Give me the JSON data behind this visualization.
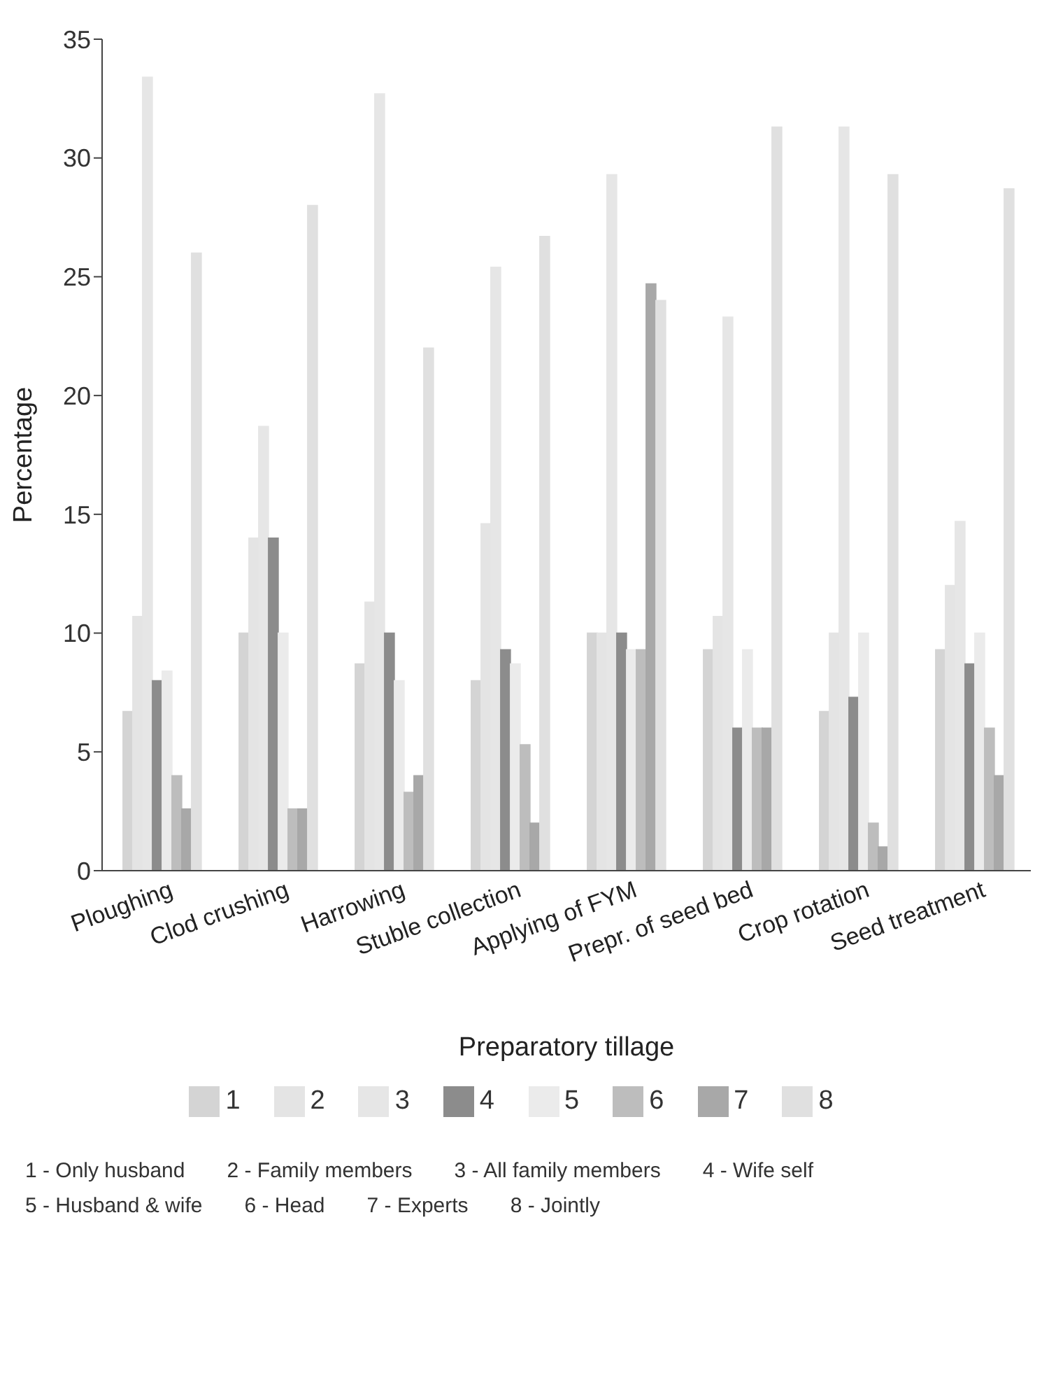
{
  "chart_data": {
    "type": "bar",
    "xlabel": "Preparatory tillage",
    "ylabel": "Percentage",
    "categories": [
      "Ploughing",
      "Clod crushing",
      "Harrowing",
      "Stuble collection",
      "Applying of FYM",
      "Prepr. of seed bed",
      "Crop rotation",
      "Seed treatment"
    ],
    "series": [
      {
        "name": "1",
        "color": "#d4d4d4",
        "values": [
          6.7,
          10,
          8.7,
          8,
          10,
          9.3,
          6.7,
          9.3
        ]
      },
      {
        "name": "2",
        "color": "#e4e4e4",
        "values": [
          10.7,
          14,
          11.3,
          14.6,
          10,
          10.7,
          10,
          12
        ]
      },
      {
        "name": "3",
        "color": "#e6e6e6",
        "values": [
          33.4,
          18.7,
          32.7,
          25.4,
          29.3,
          23.3,
          31.3,
          14.7
        ]
      },
      {
        "name": "4",
        "color": "#8c8c8c",
        "values": [
          8,
          14,
          10,
          9.3,
          10,
          6,
          7.3,
          8.7
        ]
      },
      {
        "name": "5",
        "color": "#ebebeb",
        "values": [
          8.4,
          10,
          8,
          8.7,
          9.3,
          9.3,
          10,
          10
        ]
      },
      {
        "name": "6",
        "color": "#bdbdbd",
        "values": [
          4,
          2.6,
          3.3,
          5.3,
          9.3,
          6,
          2,
          6
        ]
      },
      {
        "name": "7",
        "color": "#a8a8a8",
        "values": [
          2.6,
          2.6,
          4,
          2,
          24.7,
          6,
          1,
          4
        ]
      },
      {
        "name": "8",
        "color": "#e0e0e0",
        "values": [
          26,
          28,
          22,
          26.7,
          24,
          31.3,
          29.3,
          28.7
        ]
      }
    ],
    "ylim": [
      0,
      35
    ],
    "yticks": [
      0,
      5,
      10,
      15,
      20,
      25,
      30,
      35
    ],
    "grid": false,
    "legend": "bottom",
    "annotations": [
      "1 - Only husband",
      "2 - Family members",
      "3 - All family members",
      "4 - Wife self",
      "5 - Husband & wife",
      "6 - Head",
      "7 - Experts",
      "8 - Jointly"
    ]
  }
}
